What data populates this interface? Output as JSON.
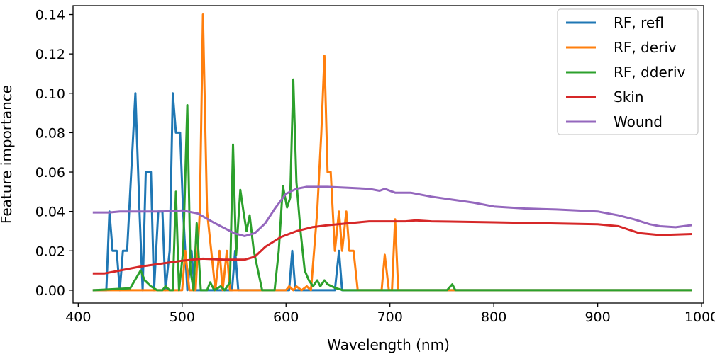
{
  "chart_data": {
    "type": "line",
    "title": "",
    "xlabel": "Wavelength (nm)",
    "ylabel": "Feature importance",
    "xlim": [
      395,
      1002
    ],
    "ylim": [
      -0.0065,
      0.1445
    ],
    "xticks": [
      400,
      500,
      600,
      700,
      800,
      900,
      1000
    ],
    "xtick_labels": [
      "400",
      "500",
      "600",
      "700",
      "800",
      "900",
      "1000"
    ],
    "yticks": [
      0.0,
      0.02,
      0.04,
      0.06,
      0.08,
      0.1,
      0.12,
      0.14
    ],
    "ytick_labels": [
      "0.00",
      "0.02",
      "0.04",
      "0.06",
      "0.08",
      "0.10",
      "0.12",
      "0.14"
    ],
    "grid": false,
    "legend_position": "top-right",
    "series": [
      {
        "name": "RF, refl",
        "color": "#1f77b4",
        "points": [
          [
            415,
            0
          ],
          [
            427,
            0
          ],
          [
            430,
            0.04
          ],
          [
            433,
            0.02
          ],
          [
            437,
            0.02
          ],
          [
            440,
            0
          ],
          [
            443,
            0.02
          ],
          [
            447,
            0.02
          ],
          [
            451,
            0.06
          ],
          [
            455,
            0.1
          ],
          [
            459,
            0.04
          ],
          [
            462,
            0
          ],
          [
            465,
            0.06
          ],
          [
            470,
            0.06
          ],
          [
            473,
            0
          ],
          [
            477,
            0.04
          ],
          [
            481,
            0.04
          ],
          [
            484,
            0
          ],
          [
            488,
            0.02
          ],
          [
            491,
            0.1
          ],
          [
            494,
            0.08
          ],
          [
            498,
            0.08
          ],
          [
            501,
            0.04
          ],
          [
            505,
            0
          ],
          [
            509,
            0.02
          ],
          [
            512,
            0
          ],
          [
            520,
            0
          ],
          [
            540,
            0
          ],
          [
            548,
            0
          ],
          [
            551,
            0.02
          ],
          [
            554,
            0
          ],
          [
            603,
            0
          ],
          [
            606,
            0.02
          ],
          [
            609,
            0
          ],
          [
            647,
            0
          ],
          [
            651,
            0.02
          ],
          [
            654,
            0
          ],
          [
            990,
            0
          ]
        ]
      },
      {
        "name": "RF, deriv",
        "color": "#ff7f0e",
        "points": [
          [
            415,
            0
          ],
          [
            500,
            0
          ],
          [
            503,
            0.02
          ],
          [
            507,
            0
          ],
          [
            513,
            0
          ],
          [
            517,
            0.04
          ],
          [
            520,
            0.14
          ],
          [
            524,
            0.04
          ],
          [
            528,
            0.02
          ],
          [
            532,
            0
          ],
          [
            536,
            0.02
          ],
          [
            539,
            0
          ],
          [
            543,
            0.02
          ],
          [
            546,
            0
          ],
          [
            595,
            0
          ],
          [
            600,
            0
          ],
          [
            603,
            0.002
          ],
          [
            607,
            0
          ],
          [
            610,
            0.002
          ],
          [
            615,
            0
          ],
          [
            620,
            0.002
          ],
          [
            624,
            0
          ],
          [
            627,
            0.02
          ],
          [
            630,
            0.04
          ],
          [
            634,
            0.08
          ],
          [
            637,
            0.119
          ],
          [
            640,
            0.06
          ],
          [
            643,
            0.06
          ],
          [
            647,
            0.02
          ],
          [
            651,
            0.04
          ],
          [
            654,
            0.02
          ],
          [
            658,
            0.04
          ],
          [
            661,
            0.02
          ],
          [
            665,
            0.02
          ],
          [
            669,
            0
          ],
          [
            688,
            0
          ],
          [
            692,
            0
          ],
          [
            695,
            0.018
          ],
          [
            699,
            0
          ],
          [
            702,
            0
          ],
          [
            705,
            0.036
          ],
          [
            708,
            0
          ],
          [
            712,
            0
          ],
          [
            990,
            0
          ]
        ]
      },
      {
        "name": "RF, dderiv",
        "color": "#2ca02c",
        "points": [
          [
            415,
            0
          ],
          [
            450,
            0.001
          ],
          [
            460,
            0.01
          ],
          [
            464,
            0.005
          ],
          [
            470,
            0.002
          ],
          [
            476,
            0
          ],
          [
            481,
            0
          ],
          [
            484,
            0.002
          ],
          [
            488,
            0
          ],
          [
            491,
            0
          ],
          [
            494,
            0.05
          ],
          [
            497,
            0
          ],
          [
            501,
            0.02
          ],
          [
            505,
            0.094
          ],
          [
            508,
            0.01
          ],
          [
            511,
            0
          ],
          [
            514,
            0.034
          ],
          [
            518,
            0
          ],
          [
            524,
            0
          ],
          [
            527,
            0.004
          ],
          [
            531,
            0
          ],
          [
            537,
            0.002
          ],
          [
            541,
            0
          ],
          [
            546,
            0.004
          ],
          [
            549,
            0.074
          ],
          [
            552,
            0.018
          ],
          [
            556,
            0.051
          ],
          [
            559,
            0.04
          ],
          [
            562,
            0.03
          ],
          [
            565,
            0.038
          ],
          [
            569,
            0.02
          ],
          [
            573,
            0.01
          ],
          [
            577,
            0
          ],
          [
            585,
            0
          ],
          [
            589,
            0
          ],
          [
            593,
            0.02
          ],
          [
            597,
            0.053
          ],
          [
            601,
            0.042
          ],
          [
            604,
            0.047
          ],
          [
            607,
            0.107
          ],
          [
            610,
            0.055
          ],
          [
            614,
            0.03
          ],
          [
            618,
            0.01
          ],
          [
            622,
            0.005
          ],
          [
            626,
            0.002
          ],
          [
            630,
            0.005
          ],
          [
            633,
            0.002
          ],
          [
            637,
            0.005
          ],
          [
            640,
            0.003
          ],
          [
            644,
            0.002
          ],
          [
            648,
            0.001
          ],
          [
            655,
            0
          ],
          [
            700,
            0
          ],
          [
            755,
            0
          ],
          [
            760,
            0.003
          ],
          [
            763,
            0
          ],
          [
            990,
            0
          ]
        ]
      },
      {
        "name": "Skin",
        "color": "#d62728",
        "points": [
          [
            415,
            0.0085
          ],
          [
            425,
            0.0085
          ],
          [
            440,
            0.01
          ],
          [
            460,
            0.012
          ],
          [
            480,
            0.0135
          ],
          [
            500,
            0.015
          ],
          [
            520,
            0.016
          ],
          [
            540,
            0.0155
          ],
          [
            560,
            0.0155
          ],
          [
            570,
            0.017
          ],
          [
            580,
            0.022
          ],
          [
            595,
            0.027
          ],
          [
            610,
            0.03
          ],
          [
            625,
            0.032
          ],
          [
            640,
            0.033
          ],
          [
            660,
            0.034
          ],
          [
            680,
            0.035
          ],
          [
            700,
            0.035
          ],
          [
            715,
            0.035
          ],
          [
            725,
            0.0355
          ],
          [
            740,
            0.035
          ],
          [
            800,
            0.0345
          ],
          [
            850,
            0.034
          ],
          [
            900,
            0.0335
          ],
          [
            920,
            0.0325
          ],
          [
            940,
            0.029
          ],
          [
            960,
            0.028
          ],
          [
            990,
            0.0285
          ]
        ]
      },
      {
        "name": "Wound",
        "color": "#9467bd",
        "points": [
          [
            415,
            0.0395
          ],
          [
            430,
            0.0395
          ],
          [
            440,
            0.04
          ],
          [
            460,
            0.04
          ],
          [
            480,
            0.04
          ],
          [
            500,
            0.0405
          ],
          [
            515,
            0.039
          ],
          [
            530,
            0.0345
          ],
          [
            550,
            0.029
          ],
          [
            560,
            0.0275
          ],
          [
            570,
            0.029
          ],
          [
            580,
            0.034
          ],
          [
            590,
            0.042
          ],
          [
            600,
            0.049
          ],
          [
            610,
            0.0515
          ],
          [
            620,
            0.0525
          ],
          [
            640,
            0.0525
          ],
          [
            660,
            0.052
          ],
          [
            680,
            0.0515
          ],
          [
            690,
            0.0505
          ],
          [
            695,
            0.0515
          ],
          [
            705,
            0.0495
          ],
          [
            720,
            0.0495
          ],
          [
            740,
            0.0475
          ],
          [
            760,
            0.046
          ],
          [
            780,
            0.0445
          ],
          [
            800,
            0.0425
          ],
          [
            830,
            0.0415
          ],
          [
            860,
            0.041
          ],
          [
            880,
            0.0405
          ],
          [
            900,
            0.04
          ],
          [
            920,
            0.038
          ],
          [
            935,
            0.036
          ],
          [
            950,
            0.0335
          ],
          [
            960,
            0.0325
          ],
          [
            975,
            0.032
          ],
          [
            990,
            0.033
          ]
        ]
      }
    ]
  }
}
